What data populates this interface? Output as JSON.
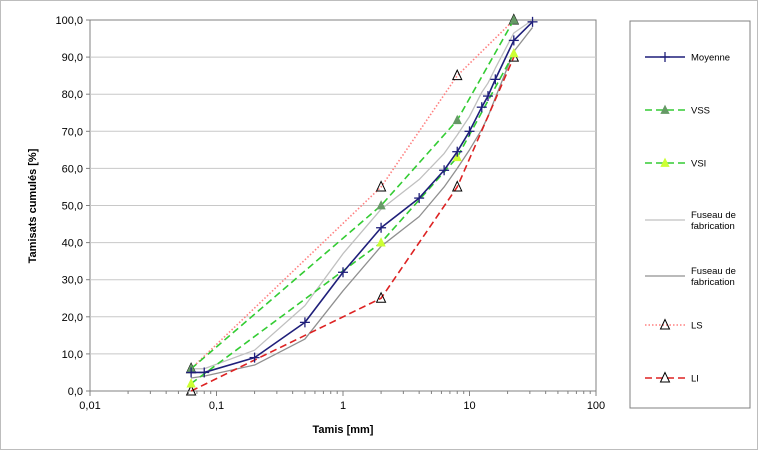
{
  "chart_data": {
    "type": "line",
    "xscale": "log",
    "xlim": [
      0.01,
      100
    ],
    "ylim": [
      0,
      100
    ],
    "xlabel": "Tamis [mm]",
    "ylabel": "Tamisats cumulés [%]",
    "xticks": [
      "0,01",
      "0,1",
      "1",
      "10",
      "100"
    ],
    "xtick_values": [
      0.01,
      0.1,
      1,
      10,
      100
    ],
    "yticks": [
      "0,0",
      "10,0",
      "20,0",
      "30,0",
      "40,0",
      "50,0",
      "60,0",
      "70,0",
      "80,0",
      "90,0",
      "100,0"
    ],
    "ytick_values": [
      0,
      10,
      20,
      30,
      40,
      50,
      60,
      70,
      80,
      90,
      100
    ],
    "grid": "horizontal",
    "legend_position": "right",
    "series": [
      {
        "name": "Moyenne",
        "color": "#1f1f7a",
        "line": "solid",
        "marker": "plus",
        "x": [
          0.063,
          0.08,
          0.2,
          0.5,
          1,
          2,
          4,
          6.3,
          8,
          10,
          12.5,
          14,
          16,
          22.4,
          31.5
        ],
        "y": [
          5,
          5,
          9,
          18.5,
          32,
          44,
          52,
          59.5,
          64.5,
          70,
          76.5,
          79.5,
          84,
          94.5,
          99.5
        ]
      },
      {
        "name": "VSS",
        "color": "#33cc33",
        "marker_color": "#669966",
        "line": "dashed",
        "marker": "filled-triangle",
        "x": [
          0.063,
          2,
          8,
          22.4
        ],
        "y": [
          6,
          50,
          73,
          100
        ]
      },
      {
        "name": "VSI",
        "color": "#33cc33",
        "marker_color": "#ccff33",
        "line": "dashed",
        "marker": "filled-triangle",
        "x": [
          0.063,
          2,
          8,
          22.4
        ],
        "y": [
          2,
          40,
          63,
          91
        ]
      },
      {
        "name": "Fuseau de fabrication",
        "color": "#c0c0c0",
        "line": "solid",
        "marker": "none",
        "x": [
          0.063,
          0.08,
          0.2,
          0.5,
          1,
          2,
          4,
          6.3,
          8,
          10,
          12.5,
          14,
          16,
          22.4,
          31.5
        ],
        "y": [
          6,
          6,
          11,
          23,
          37,
          49,
          57,
          64,
          69,
          74,
          80.5,
          83,
          87,
          96.5,
          100
        ]
      },
      {
        "name": "Fuseau de fabrication",
        "color": "#909090",
        "line": "solid",
        "marker": "none",
        "x": [
          0.063,
          0.08,
          0.2,
          0.5,
          1,
          2,
          4,
          6.3,
          8,
          10,
          12.5,
          14,
          16,
          22.4,
          31.5
        ],
        "y": [
          3.5,
          4,
          7,
          14,
          27,
          39,
          47,
          55,
          60,
          65,
          70.5,
          74,
          79,
          91.5,
          98
        ]
      },
      {
        "name": "LS",
        "color": "#ff8080",
        "marker_color": "#000000",
        "line": "dotted",
        "marker": "open-triangle",
        "x": [
          0.063,
          2,
          8,
          22.4
        ],
        "y": [
          6,
          55,
          85,
          100
        ]
      },
      {
        "name": "LI",
        "color": "#dd2222",
        "marker_color": "#000000",
        "line": "dashed",
        "marker": "open-triangle",
        "x": [
          0.063,
          2,
          8,
          22.4
        ],
        "y": [
          0,
          25,
          55,
          90
        ]
      }
    ]
  }
}
